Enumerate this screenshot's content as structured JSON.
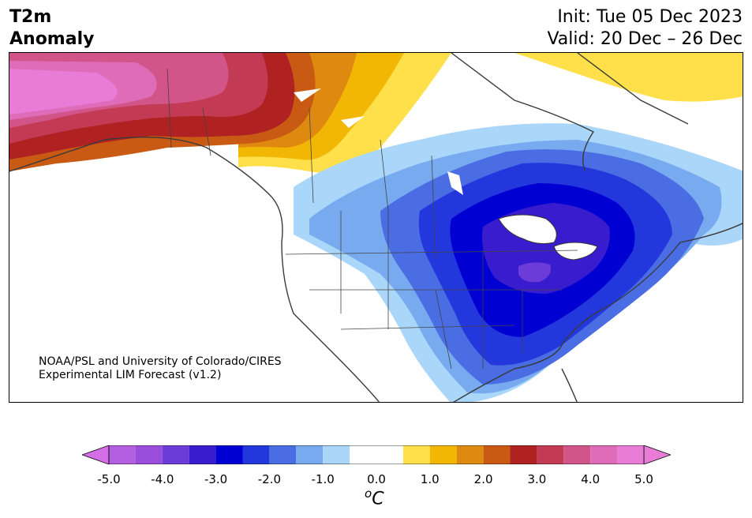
{
  "title": {
    "left_line1": "T2m",
    "left_line2": "Anomaly",
    "init": "Init: Tue 05 Dec 2023",
    "valid": "Valid: 20 Dec – 26 Dec"
  },
  "credit": {
    "line1": "NOAA/PSL and University of Colorado/CIRES",
    "line2": "Experimental LIM Forecast (v1.2)"
  },
  "colorbar": {
    "unit": "C",
    "unit_prefix": "o",
    "tick_labels": [
      "-5.0",
      "-4.0",
      "-3.0",
      "-2.0",
      "-1.0",
      "0.0",
      "1.0",
      "2.0",
      "3.0",
      "4.0",
      "5.0"
    ],
    "tick_values": [
      -5,
      -4,
      -3,
      -2,
      -1,
      0,
      1,
      2,
      3,
      4,
      5
    ],
    "bins": [
      {
        "lo": -5.0,
        "hi": -4.5,
        "color": "#b35fe0"
      },
      {
        "lo": -4.5,
        "hi": -4.0,
        "color": "#9a4fdc"
      },
      {
        "lo": -4.0,
        "hi": -3.5,
        "color": "#6c3cd8"
      },
      {
        "lo": -3.5,
        "hi": -3.0,
        "color": "#3a1ccf"
      },
      {
        "lo": -3.0,
        "hi": -2.5,
        "color": "#0000d2"
      },
      {
        "lo": -2.5,
        "hi": -2.0,
        "color": "#2338dc"
      },
      {
        "lo": -2.0,
        "hi": -1.5,
        "color": "#4a6de4"
      },
      {
        "lo": -1.5,
        "hi": -1.0,
        "color": "#78aaf0"
      },
      {
        "lo": -1.0,
        "hi": -0.5,
        "color": "#aad6fa"
      },
      {
        "lo": -0.5,
        "hi": 0.5,
        "color": "#ffffff"
      },
      {
        "lo": 0.5,
        "hi": 1.0,
        "color": "#ffe04a"
      },
      {
        "lo": 1.0,
        "hi": 1.5,
        "color": "#f2b705"
      },
      {
        "lo": 1.5,
        "hi": 2.0,
        "color": "#de8a10"
      },
      {
        "lo": 2.0,
        "hi": 2.5,
        "color": "#c85a14"
      },
      {
        "lo": 2.5,
        "hi": 3.0,
        "color": "#b02222"
      },
      {
        "lo": 3.0,
        "hi": 3.5,
        "color": "#c33a55"
      },
      {
        "lo": 3.5,
        "hi": 4.0,
        "color": "#d15588"
      },
      {
        "lo": 4.0,
        "hi": 4.5,
        "color": "#df6cb8"
      },
      {
        "lo": 4.5,
        "hi": 5.0,
        "color": "#e87cd6"
      }
    ],
    "extend_min_color": "#d46ee8",
    "extend_max_color": "#e87cd6"
  }
}
